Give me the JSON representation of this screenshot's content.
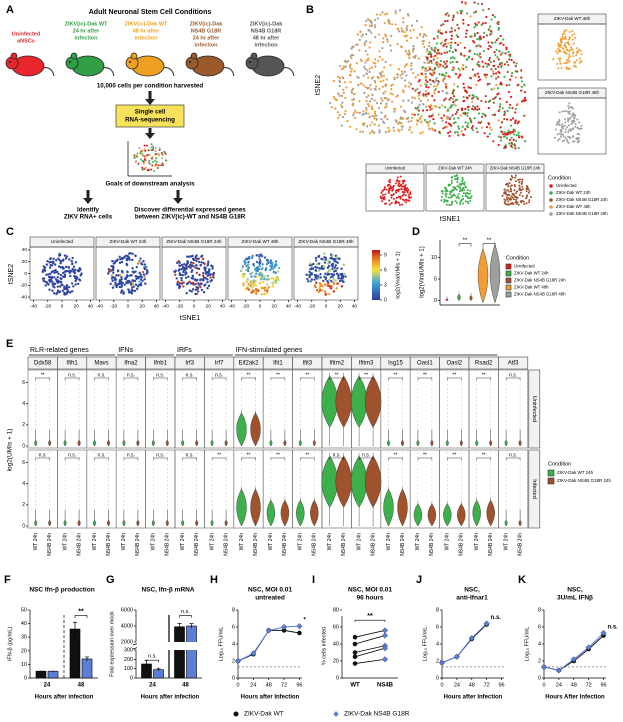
{
  "A": {
    "label": "A",
    "title": "Adult Neuronal Stem Cell Conditions",
    "conditions": [
      {
        "lines": [
          "Uninfected",
          "aNSCs"
        ],
        "color": "#e8262b"
      },
      {
        "lines": [
          "ZIKV(ic)-Dak WT",
          "24 hr after",
          "infection"
        ],
        "color": "#2f9e44"
      },
      {
        "lines": [
          "ZIKV(ic)-Dak WT",
          "48 hr after",
          "infection"
        ],
        "color": "#f0a020"
      },
      {
        "lines": [
          "ZIKV(ic)-Dak",
          "NS4B G18R",
          "24 hr after",
          "infection"
        ],
        "color": "#9a5a2a"
      },
      {
        "lines": [
          "ZIKV(ic)-Dak",
          "NS4B G18R",
          "48 hr after",
          "infection"
        ],
        "color": "#555555"
      }
    ],
    "harvest": "10,000 cells per condition harvested",
    "sequencing": [
      "Single cell",
      "RNA-sequencing"
    ],
    "goals": "Goals of downstream analysis",
    "outcomes": [
      [
        "Identify",
        "ZIKV RNA+ cells"
      ],
      [
        "Discover differential expressed genes",
        "between ZIKV(ic)-WT and NS4B G18R"
      ]
    ]
  },
  "B": {
    "label": "B",
    "y_label": "tSNE2",
    "x_label": "tSNE1",
    "side_titles": [
      "ZIKV-Dak WT 48h",
      "ZIKV-Dak NS4B G18R 48h"
    ],
    "bottom_titles": [
      "Uninfected",
      "ZIKV-Dak WT 24h",
      "ZIKV-Dak NS4B G18R 24h"
    ],
    "legend_title": "Condition",
    "legend": [
      {
        "name": "Uninfected",
        "color": "#e41a1c"
      },
      {
        "name": "ZIKV-Dak WT 24h",
        "color": "#3cb04a"
      },
      {
        "name": "ZIKV-Dak NS4B G18R 24h",
        "color": "#a0522d"
      },
      {
        "name": "ZIKV-Dak WT 48h",
        "color": "#f39c34"
      },
      {
        "name": "ZIKV-Dak NS4B G18R 48h",
        "color": "#9e9e9e"
      }
    ]
  },
  "C": {
    "label": "C",
    "titles": [
      "Uninfected",
      "ZIKV-Dak WT 24h",
      "ZIKV-Dak NS4B G18R 24h",
      "ZIKV-Dak WT 48h",
      "ZIKV-Dak NS4B G18R 48h"
    ],
    "y_label": "tSNE2",
    "x_label": "tSNE1",
    "xlim": [
      -45,
      45
    ],
    "ylim": [
      -45,
      45
    ],
    "xticks": [
      -40,
      -20,
      0,
      20,
      40
    ],
    "yticks": [
      -40,
      -20,
      0,
      20,
      40
    ],
    "colorbar_label": "log2(ViralUMIs + 1)",
    "colorbar_lim": [
      0,
      10
    ],
    "colorbar_ticks": [
      0,
      3,
      6,
      9
    ]
  },
  "D": {
    "label": "D",
    "y_label": "log2(ViralUMIs + 1)",
    "ylim": [
      -1,
      14
    ],
    "yticks": [
      0,
      5,
      10
    ],
    "significance": [
      "**",
      "**"
    ],
    "legend_title": "Condition",
    "legend": [
      {
        "name": "Uninfected",
        "color": "#e41a1c"
      },
      {
        "name": "ZIKV-Dak WT 24h",
        "color": "#3cb04a"
      },
      {
        "name": "ZIKV-Dak NS4B G18R 24h",
        "color": "#a0522d"
      },
      {
        "name": "ZIKV-Dak WT 48h",
        "color": "#f39c34"
      },
      {
        "name": "ZIKV-Dak NS4B G18R 48h",
        "color": "#9e9e9e"
      }
    ]
  },
  "E": {
    "label": "E",
    "y_label": "log2(UMIs + 1)",
    "ylim": [
      0,
      7
    ],
    "yticks": [
      0,
      2,
      4,
      6
    ],
    "rows": [
      "Uninfected",
      "Infected"
    ],
    "x_labels": [
      "WT 24h",
      "NS4B 24h"
    ],
    "groups": [
      {
        "name": "RLR-related genes",
        "genes": [
          {
            "name": "Ddx58",
            "sig": [
              "**",
              "n.s."
            ]
          },
          {
            "name": "Ifih1",
            "sig": [
              "n.s.",
              "n.s."
            ]
          },
          {
            "name": "Mavs",
            "sig": [
              "n.s.",
              "n.s."
            ]
          }
        ]
      },
      {
        "name": "IFNs",
        "genes": [
          {
            "name": "Ifna2",
            "sig": [
              "n.s.",
              "n.s."
            ]
          },
          {
            "name": "Ifnb1",
            "sig": [
              "n.s.",
              "n.s."
            ]
          }
        ]
      },
      {
        "name": "IRFs",
        "genes": [
          {
            "name": "Irf3",
            "sig": [
              "n.s.",
              "n.s."
            ]
          },
          {
            "name": "Irf7",
            "sig": [
              "n.s.",
              "**"
            ]
          }
        ]
      },
      {
        "name": "IFN-stimulated genes",
        "genes": [
          {
            "name": "Eif2ak2",
            "sig": [
              "**",
              "**"
            ]
          },
          {
            "name": "Ifit1",
            "sig": [
              "**",
              "**"
            ]
          },
          {
            "name": "Ifit3",
            "sig": [
              "**",
              "**"
            ]
          },
          {
            "name": "Ifitm2",
            "sig": [
              "**",
              "n.s."
            ]
          },
          {
            "name": "Ifitm3",
            "sig": [
              "**",
              "n.s."
            ]
          },
          {
            "name": "Isg15",
            "sig": [
              "**",
              "**"
            ]
          },
          {
            "name": "Oasl1",
            "sig": [
              "**",
              "**"
            ]
          },
          {
            "name": "Oasl2",
            "sig": [
              "**",
              "**"
            ]
          },
          {
            "name": "Rsad2",
            "sig": [
              "**",
              "**"
            ]
          }
        ]
      },
      {
        "genes": [
          {
            "name": "Atf3",
            "sig": [
              "n.s.",
              "n.s."
            ]
          }
        ]
      }
    ],
    "legend_title": "Condition",
    "legend": [
      {
        "name": "ZIKV-Dak WT 24h",
        "color": "#3cb04a"
      },
      {
        "name": "ZIKV-Dak NS4B G18R 24h",
        "color": "#a0522d"
      }
    ]
  },
  "F": {
    "label": "F",
    "title_lines": [
      "NSC Ifn-β production"
    ],
    "y_label": "IFN-β (pg/mL)",
    "x_label": "Hours after infection",
    "categories": [
      "24",
      "48"
    ],
    "values": [
      [
        5,
        5
      ],
      [
        36,
        14
      ]
    ],
    "errors": [
      [
        0,
        0
      ],
      [
        5,
        1.5
      ]
    ],
    "ylim": [
      0,
      50
    ],
    "yticks": [
      0,
      10,
      20,
      30,
      40,
      50
    ],
    "annotation": "**"
  },
  "G": {
    "label": "G",
    "title_lines": [
      "NSC, Ifn-β mRNA"
    ],
    "y_label": "Fold expression over mock",
    "x_label": "Hours after infection",
    "categories": [
      "24",
      "48"
    ],
    "values": [
      [
        150,
        90
      ],
      [
        3900,
        4000
      ]
    ],
    "errors": [
      [
        40,
        15
      ],
      [
        400,
        300
      ]
    ],
    "ylim_low": [
      0,
      300
    ],
    "yticks_low": [
      0,
      100,
      200,
      300
    ],
    "ylim_high": [
      2000,
      6000
    ],
    "yticks_high": [
      2000,
      4000,
      6000
    ],
    "annotations": [
      "n.s.",
      "n.s."
    ]
  },
  "H": {
    "label": "H",
    "title_lines": [
      "NSC, MOI 0.01",
      "untreated"
    ],
    "y_label": "Log₁₀ FFU/mL",
    "x_label": "Hours after Infection",
    "xlim": [
      0,
      100
    ],
    "ylim": [
      0,
      8
    ],
    "xticks": [
      0,
      24,
      48,
      72,
      96
    ],
    "yticks": [
      0,
      2,
      4,
      6,
      8
    ],
    "limit_of_detection": 1.3,
    "x": [
      0,
      24,
      48,
      72,
      96
    ],
    "series": [
      {
        "values": [
          2.0,
          2.8,
          5.6,
          5.6,
          5.3
        ]
      },
      {
        "values": [
          2.0,
          2.9,
          5.6,
          6.0,
          6.1
        ]
      }
    ],
    "annotation": "*"
  },
  "I": {
    "label": "I",
    "title_lines": [
      "NSC, MOI 0.01",
      "96 hours"
    ],
    "y_label": "% cells infected",
    "categories": [
      "WT",
      "NS4B"
    ],
    "pairs": [
      [
        48,
        56
      ],
      [
        40,
        50
      ],
      [
        30,
        38
      ],
      [
        25,
        35
      ],
      [
        17,
        22
      ]
    ],
    "ylim": [
      0,
      80
    ],
    "yticks": [
      0,
      20,
      40,
      60,
      80
    ],
    "annotation": "**"
  },
  "J": {
    "label": "J",
    "title_lines": [
      "NSC,",
      "anti-Ifnar1"
    ],
    "y_label": "Log₁₀ FFU/mL",
    "x_label": "Hours after Infection",
    "xlim": [
      0,
      100
    ],
    "ylim": [
      0,
      8
    ],
    "xticks": [
      0,
      24,
      48,
      72,
      96
    ],
    "yticks": [
      0,
      2,
      4,
      6,
      8
    ],
    "limit_of_detection": 1.3,
    "x": [
      0,
      24,
      48,
      72
    ],
    "series": [
      {
        "values": [
          1.8,
          2.5,
          4.6,
          6.3
        ]
      },
      {
        "values": [
          1.8,
          2.5,
          4.7,
          6.4
        ]
      }
    ],
    "annotation": "n.s."
  },
  "K": {
    "label": "K",
    "title_lines": [
      "NSC,",
      "3U/mL IFNβ"
    ],
    "y_label": "Log₁₀ FFU/mL",
    "x_label": "Hours After Infection",
    "xlim": [
      0,
      100
    ],
    "ylim": [
      0,
      8
    ],
    "xticks": [
      0,
      24,
      48,
      72,
      96
    ],
    "yticks": [
      0,
      2,
      4,
      6,
      8
    ],
    "limit_of_detection": 1.3,
    "x": [
      0,
      24,
      48,
      72,
      96
    ],
    "series": [
      {
        "values": [
          1.3,
          0.9,
          2.0,
          3.4,
          5.0
        ]
      },
      {
        "values": [
          1.3,
          0.9,
          2.2,
          3.6,
          5.3
        ]
      }
    ],
    "annotation": "n.s."
  },
  "legend": [
    {
      "name": "ZIKV-Dak WT",
      "color": "#111111"
    },
    {
      "name": "ZIKV-Dak NS4B G18R",
      "color": "#5b7fd6"
    }
  ]
}
